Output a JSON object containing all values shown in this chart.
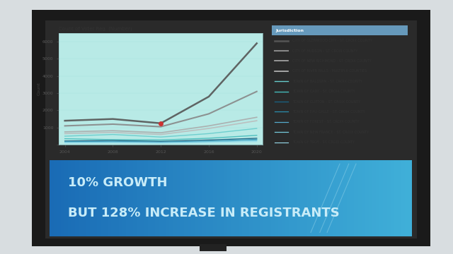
{
  "chart_title": "Count of Voter Reg. (Number)",
  "ylabel": "Count",
  "years": [
    2004,
    2008,
    2012,
    2016,
    2020
  ],
  "screen_bg": "#3a3a3a",
  "wall_bg": "#d8dde0",
  "monitor_bg": "#1a1a1a",
  "chart_bg": "#b8eae6",
  "banner_bg_left": "#1a6ab5",
  "banner_bg_right": "#40b0d8",
  "banner_line1": "10% GROWTH",
  "banner_line2": "BUT 128% INCREASE IN REGISTRANTS",
  "banner_color": "#c8ecf8",
  "series": [
    {
      "name": "CITY OF GLENWOOD CITY - ST. CROIX COUNTY",
      "color": "#555555",
      "lw": 1.8,
      "values": [
        1400,
        1500,
        1250,
        2800,
        5900
      ]
    },
    {
      "name": "CITY OF HUDSON - ST. CROIX COUNTY",
      "color": "#888888",
      "lw": 1.5,
      "values": [
        1100,
        1200,
        1050,
        1800,
        3100
      ]
    },
    {
      "name": "CITY OF NEW RICHMOND - ST. CROIX COUNTY",
      "color": "#aaaaaa",
      "lw": 1.2,
      "values": [
        750,
        820,
        700,
        1100,
        1600
      ]
    },
    {
      "name": "CITY OF RIVER FALLS - MULTIPLE COUNTIES",
      "color": "#bbbbbb",
      "lw": 1.2,
      "values": [
        650,
        720,
        600,
        950,
        1400
      ]
    },
    {
      "name": "TOWN OF BALDWIN - ST. CROIX COUNTY",
      "color": "#66cccc",
      "lw": 1.0,
      "values": [
        500,
        600,
        450,
        650,
        950
      ]
    },
    {
      "name": "TOWN OF CADY - ST. CROIX COUNTY",
      "color": "#44bbbb",
      "lw": 1.0,
      "values": [
        350,
        300,
        280,
        380,
        550
      ]
    },
    {
      "name": "TOWN OF CLIFTON - ST. CROIX COUNTY",
      "color": "#1a6080",
      "lw": 1.0,
      "values": [
        220,
        250,
        200,
        280,
        380
      ]
    },
    {
      "name": "TOWN OF EAU GALLE - ST. CROIX COUNTY",
      "color": "#2a90b0",
      "lw": 0.9,
      "values": [
        180,
        200,
        160,
        220,
        320
      ]
    },
    {
      "name": "TOWN OF FOREST - ST. CROIX COUNTY",
      "color": "#55aacc",
      "lw": 0.9,
      "values": [
        160,
        180,
        140,
        200,
        280
      ]
    },
    {
      "name": "TOWN OF NEW FRANCE - ST. CROIX COUNTY",
      "color": "#77ccdd",
      "lw": 0.9,
      "values": [
        140,
        150,
        120,
        170,
        240
      ]
    },
    {
      "name": "TOWN OF TROY - ST. CROIX COUNTY",
      "color": "#99ddee",
      "lw": 0.8,
      "values": [
        100,
        110,
        90,
        130,
        185
      ]
    }
  ],
  "highlight_point": {
    "series_idx": 0,
    "year_idx": 2,
    "color": "#cc3333"
  },
  "ylim": [
    0,
    6500
  ],
  "yticks": [
    0,
    1000,
    2000,
    3000,
    4000,
    5000,
    6000
  ],
  "legend_title": "Jurisdiction",
  "figsize": [
    6.4,
    3.6
  ],
  "dpi": 100
}
